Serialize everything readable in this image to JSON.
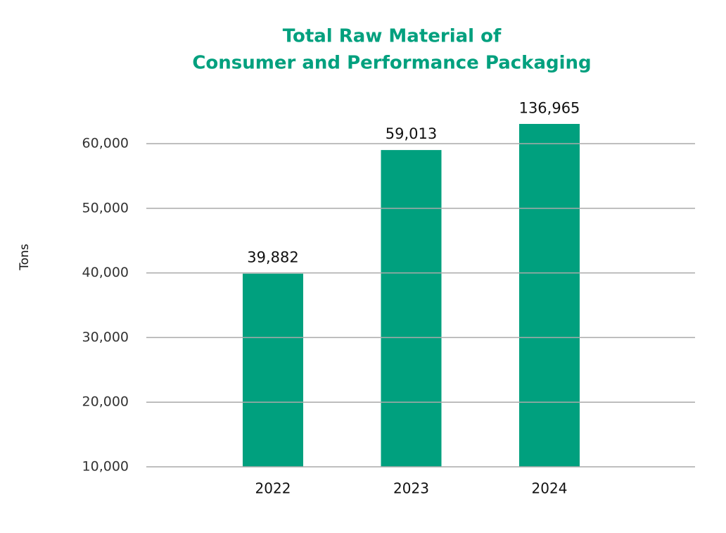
{
  "chart_data": {
    "type": "bar",
    "title": [
      "Total Raw Material of",
      "Consumer and Performance Packaging"
    ],
    "y_label": "Tons",
    "categories": [
      "2022",
      "2023",
      "2024"
    ],
    "values": [
      39882,
      59013,
      136965
    ],
    "value_labels": [
      "39,882",
      "59,013",
      "136,965"
    ],
    "color": "#00a07e",
    "ylim": [
      10000,
      63000
    ],
    "yticks": [
      {
        "value": 10000,
        "label": "10,000"
      },
      {
        "value": 20000,
        "label": "20,000"
      },
      {
        "value": 30000,
        "label": "30,000"
      },
      {
        "value": 40000,
        "label": "40,000"
      },
      {
        "value": 50000,
        "label": "50,000"
      },
      {
        "value": 60000,
        "label": "60,000"
      }
    ],
    "grid": true
  }
}
